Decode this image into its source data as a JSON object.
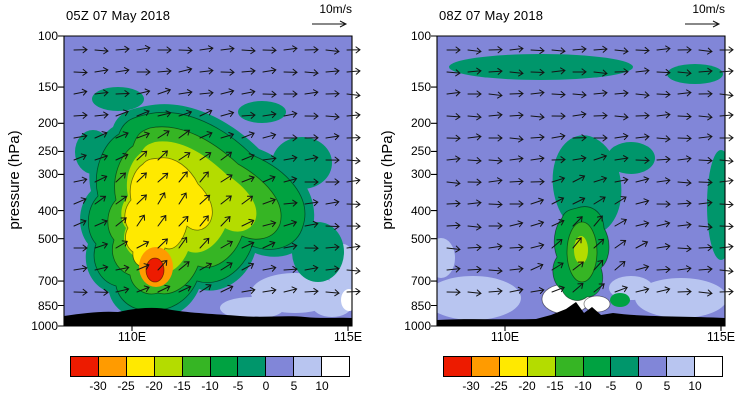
{
  "figure": {
    "panels": [
      {
        "title": "05Z 07 May 2018",
        "wind_scale_label": "10m/s",
        "ylabel": "pressure (hPa)",
        "y_ticks": [
          100,
          150,
          200,
          250,
          300,
          400,
          500,
          700,
          850,
          1000
        ],
        "x_tick_labels": [
          "110E",
          "115E"
        ]
      },
      {
        "title": "08Z 07 May 2018",
        "wind_scale_label": "10m/s",
        "ylabel": "pressure (hPa)",
        "y_ticks": [
          100,
          150,
          200,
          250,
          300,
          400,
          500,
          700,
          850,
          1000
        ],
        "x_tick_labels": [
          "110E",
          "115E"
        ]
      }
    ],
    "colorbar": {
      "tick_labels": [
        "-30",
        "-25",
        "-20",
        "-15",
        "-10",
        "-5",
        "0",
        "5",
        "10"
      ],
      "colors": [
        "#ed1b00",
        "#ff9b00",
        "#ffe900",
        "#b4dc00",
        "#36b524",
        "#00a241",
        "#00966b",
        "#8186d8",
        "#b8c5f0",
        "#ffffff"
      ]
    }
  },
  "chart_data": [
    {
      "type": "heatmap",
      "title": "05Z 07 May 2018",
      "ylabel": "pressure (hPa)",
      "y_ticks_hPa": [
        100,
        150,
        200,
        250,
        300,
        400,
        500,
        700,
        850,
        1000
      ],
      "x_tick_labels": [
        "110E",
        "115E"
      ],
      "shading_levels": [
        -30,
        -25,
        -20,
        -15,
        -10,
        -5,
        0,
        5,
        10
      ],
      "shading_palette": [
        "#ed1b00",
        "#ff9b00",
        "#ffe900",
        "#b4dc00",
        "#36b524",
        "#00a241",
        "#00966b",
        "#8186d8",
        "#b8c5f0",
        "#ffffff"
      ],
      "wind_vectors": "arrows over full section, reference vector 10m/s at top right",
      "features": [
        {
          "name": "intense-negative-core",
          "level": "< -30",
          "approx_location": "near 110E, 650-700 hPa"
        },
        {
          "name": "deep-tilted-negative-column",
          "level": "-25 to -10",
          "approx_location": "109E-113E, 200-900 hPa, tilted eastward with height"
        },
        {
          "name": "weak-negative-patches",
          "level": "-5 to 0",
          "approx_location": "near 150-250 hPa and flanking the column"
        },
        {
          "name": "weak-positive-background",
          "level": "0 to 5",
          "approx_location": "remainder of the section"
        },
        {
          "name": "positive-patches",
          "level": "5 to 10",
          "approx_location": "112E-114E below 500 hPa"
        },
        {
          "name": "terrain",
          "level": "masked black",
          "approx_location": "below ~925 hPa across the section"
        }
      ]
    },
    {
      "type": "heatmap",
      "title": "08Z 07 May 2018",
      "ylabel": "pressure (hPa)",
      "y_ticks_hPa": [
        100,
        150,
        200,
        250,
        300,
        400,
        500,
        700,
        850,
        1000
      ],
      "x_tick_labels": [
        "110E",
        "115E"
      ],
      "shading_levels": [
        -30,
        -25,
        -20,
        -15,
        -10,
        -5,
        0,
        5,
        10
      ],
      "shading_palette": [
        "#ed1b00",
        "#ff9b00",
        "#ffe900",
        "#b4dc00",
        "#36b524",
        "#00a241",
        "#00966b",
        "#8186d8",
        "#b8c5f0",
        "#ffffff"
      ],
      "wind_vectors": "arrows over full section, reference vector 10m/s at top right",
      "features": [
        {
          "name": "moderate-negative-core",
          "level": "-20 to -15",
          "approx_location": "near 111E, 500-600 hPa"
        },
        {
          "name": "narrow-negative-column",
          "level": "-15 to -5",
          "approx_location": "110.5E-112E, 400-850 hPa"
        },
        {
          "name": "weak-negative-band",
          "level": "-5 to 0",
          "approx_location": "100-150 hPa band and streak near 111E, 250-450 hPa"
        },
        {
          "name": "strong-positive-patch",
          "level": ">= 10 (white)",
          "approx_location": "near 111E, 700-900 hPa beside terrain peak"
        },
        {
          "name": "positive-patches",
          "level": "5 to 10",
          "approx_location": "low levels near 109E and 113-114E"
        },
        {
          "name": "terrain-peak",
          "level": "masked black",
          "approx_location": "peak reaching ~850 hPa near 111E"
        }
      ]
    }
  ]
}
